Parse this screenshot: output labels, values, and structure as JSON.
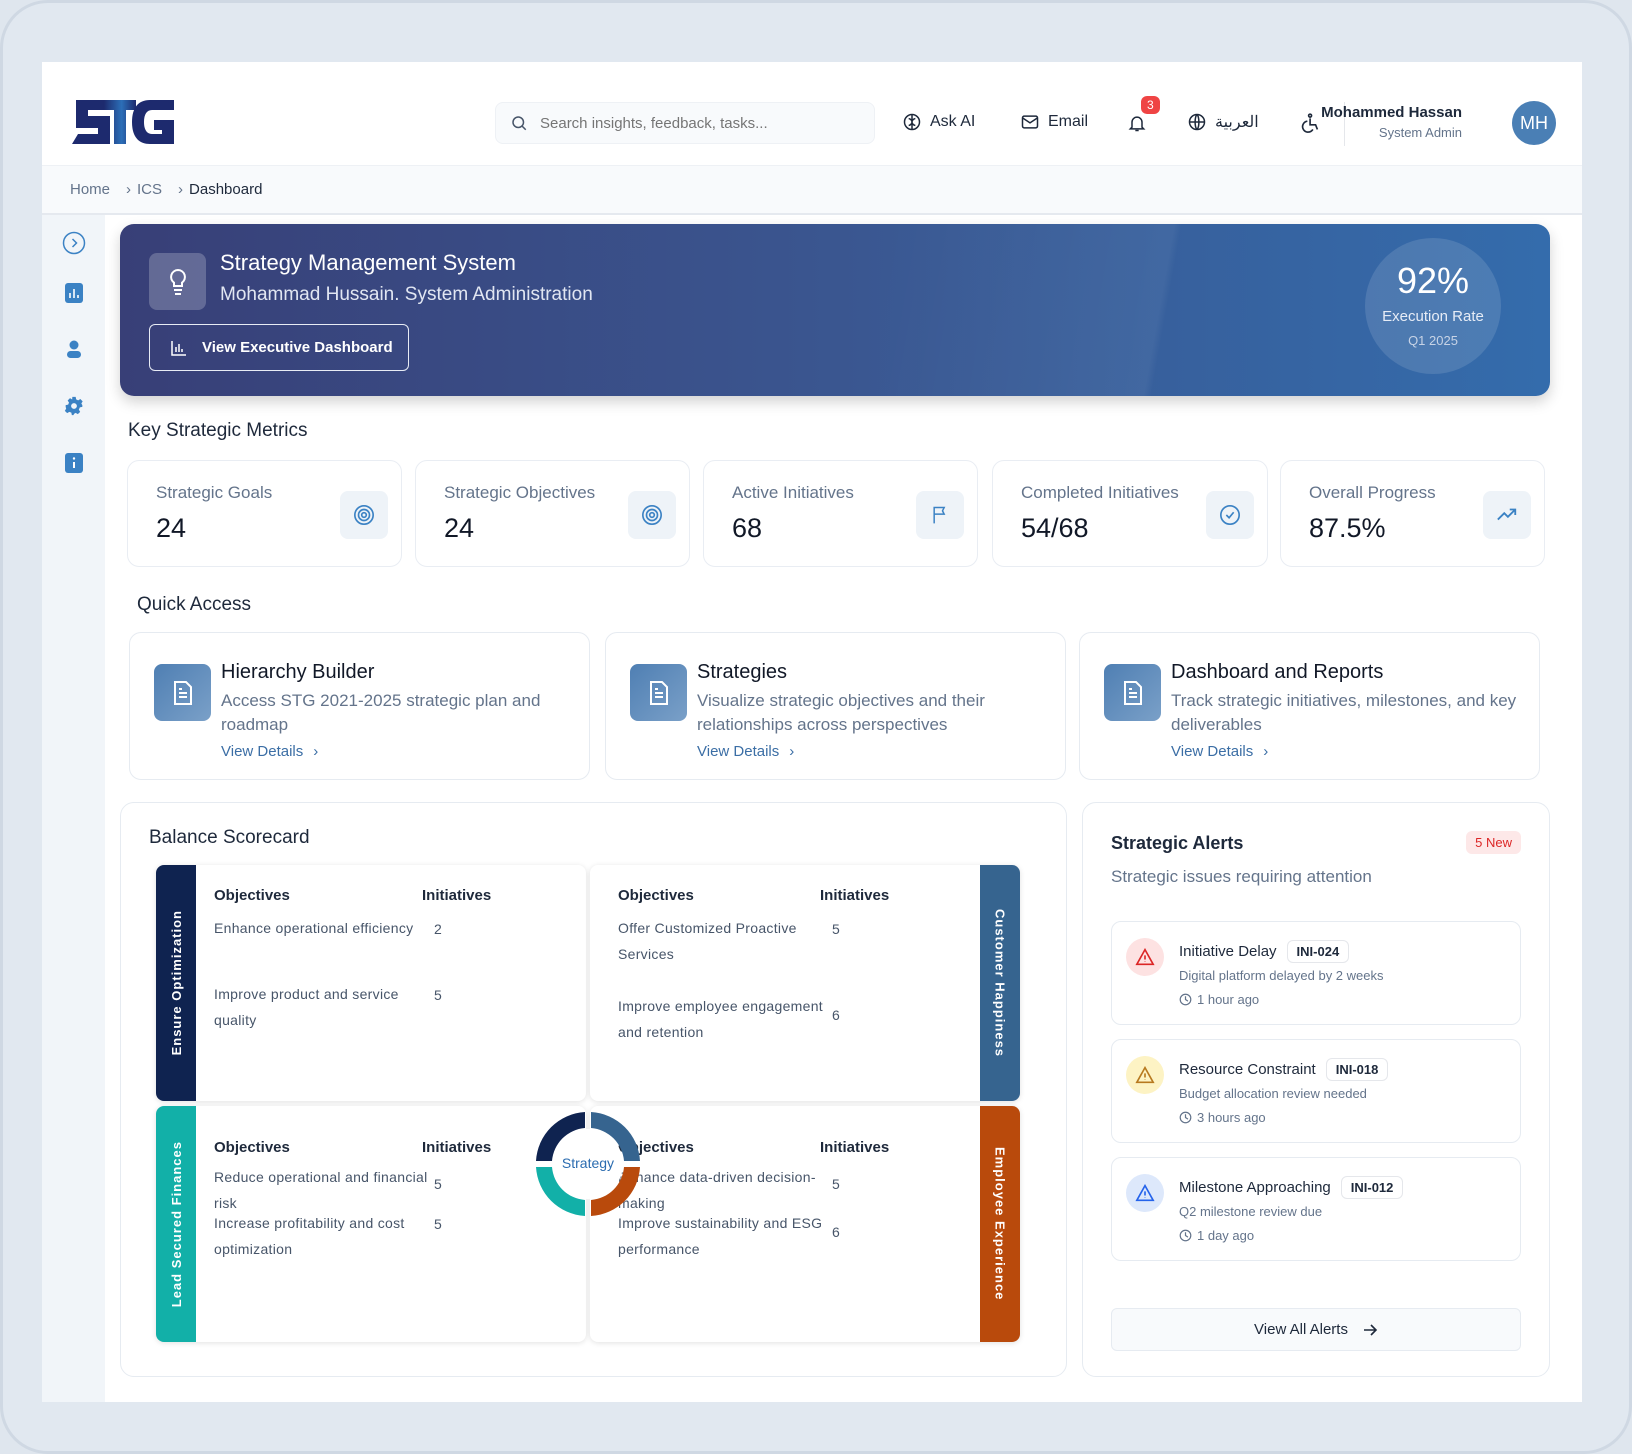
{
  "header": {
    "logo_text": "STG",
    "search_placeholder": "Search insights, feedback, tasks...",
    "ask_ai": "Ask AI",
    "email": "Email",
    "notification_count": "3",
    "language": "العربية",
    "user_name": "Mohammed Hassan",
    "user_role": "System Admin",
    "avatar_initials": "MH"
  },
  "breadcrumb": [
    "Home",
    "ICS",
    "Dashboard"
  ],
  "hero": {
    "title": "Strategy Management System",
    "subtitle": "Mohammad Hussain. System Administration",
    "button": "View Executive Dashboard",
    "rate_value": "92%",
    "rate_label": "Execution Rate",
    "rate_period": "Q1 2025"
  },
  "metrics": {
    "title": "Key Strategic Metrics",
    "items": [
      {
        "label": "Strategic Goals",
        "value": "24",
        "icon": "target-icon"
      },
      {
        "label": "Strategic Objectives",
        "value": "24",
        "icon": "target-icon"
      },
      {
        "label": "Active Initiatives",
        "value": "68",
        "icon": "flag-icon"
      },
      {
        "label": "Completed Initiatives",
        "value": "54/68",
        "icon": "check-circle-icon"
      },
      {
        "label": "Overall Progress",
        "value": "87.5%",
        "icon": "trending-up-icon"
      }
    ]
  },
  "quick_access": {
    "title": "Quick Access",
    "items": [
      {
        "title": "Hierarchy Builder",
        "desc": "Access STG 2021-2025 strategic plan and roadmap",
        "link": "View Details"
      },
      {
        "title": "Strategies",
        "desc": "Visualize strategic objectives and their relationships across perspectives",
        "link": "View Details"
      },
      {
        "title": "Dashboard and Reports",
        "desc": "Track strategic initiatives, milestones, and key deliverables",
        "link": "View Details"
      }
    ]
  },
  "scorecard": {
    "title": "Balance Scorecard",
    "center": "Strategy",
    "col_objectives": "Objectives",
    "col_initiatives": "Initiatives",
    "quadrants": [
      {
        "name": "Ensure Optimization",
        "color": "#0f2350",
        "rows": [
          {
            "objective": "Enhance operational efficiency",
            "initiatives": "2"
          },
          {
            "objective": "Improve product and service quality",
            "initiatives": "5"
          }
        ]
      },
      {
        "name": "Customer Happiness",
        "color": "#36648f",
        "rows": [
          {
            "objective": "Offer Customized Proactive Services",
            "initiatives": "5"
          },
          {
            "objective": "Improve employee engagement and retention",
            "initiatives": "6"
          }
        ]
      },
      {
        "name": "Lead Secured Finances",
        "color": "#12b0a8",
        "rows": [
          {
            "objective": "Reduce operational and financial risk",
            "initiatives": "5"
          },
          {
            "objective": "Increase profitability and cost optimization",
            "initiatives": "5"
          }
        ]
      },
      {
        "name": "Employee Experience",
        "color": "#b94a0c",
        "rows": [
          {
            "objective": "Enhance data-driven decision-making",
            "initiatives": "5"
          },
          {
            "objective": "Improve sustainability and ESG performance",
            "initiatives": "6"
          }
        ]
      }
    ]
  },
  "alerts": {
    "title": "Strategic Alerts",
    "badge": "5 New",
    "subtitle": "Strategic issues requiring attention",
    "items": [
      {
        "title": "Initiative Delay",
        "code": "INI-024",
        "desc": "Digital platform delayed by 2 weeks",
        "time": "1 hour ago",
        "color": "#dc2626",
        "bg": "#fde2e2"
      },
      {
        "title": "Resource Constraint",
        "code": "INI-018",
        "desc": "Budget allocation review needed",
        "time": "3 hours ago",
        "color": "#b7791f",
        "bg": "#fdf3c4"
      },
      {
        "title": "Milestone Approaching",
        "code": "INI-012",
        "desc": "Q2 milestone review due",
        "time": "1 day ago",
        "color": "#2563eb",
        "bg": "#dde8fb"
      }
    ],
    "view_all": "View All Alerts"
  }
}
